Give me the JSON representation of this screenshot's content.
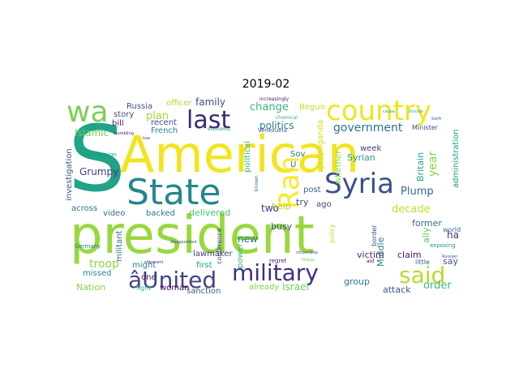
{
  "chart_data": {
    "type": "wordcloud",
    "title": "2019-02",
    "colormap": "viridis",
    "background": "#ffffff",
    "words": [
      {
        "text": "American",
        "color": "#f0e51f"
      },
      {
        "text": "president",
        "color": "#98d83e"
      },
      {
        "text": "S",
        "color": "#20a386"
      },
      {
        "text": "State",
        "color": "#23888e"
      },
      {
        "text": "country",
        "color": "#f1e51d"
      },
      {
        "text": "military",
        "color": "#3e2f82"
      },
      {
        "text": "Syria",
        "color": "#3b518b"
      },
      {
        "text": "Ran",
        "color": "#fde725"
      },
      {
        "text": "wa",
        "color": "#7ad151"
      },
      {
        "text": "said",
        "color": "#b5de2b"
      },
      {
        "text": "last",
        "color": "#3a2a72"
      },
      {
        "text": "âUnited",
        "color": "#414487"
      },
      {
        "text": "government",
        "color": "#2c718e"
      },
      {
        "text": "change",
        "color": "#35b779"
      },
      {
        "text": "Islamic",
        "color": "#6ece58"
      },
      {
        "text": "troop",
        "color": "#8ed645"
      },
      {
        "text": "decade",
        "color": "#bddf26"
      },
      {
        "text": "Plump",
        "color": "#31688e"
      },
      {
        "text": "politics",
        "color": "#2a7b8e"
      },
      {
        "text": "plan",
        "color": "#a2da37"
      },
      {
        "text": "family",
        "color": "#3d4e8a"
      },
      {
        "text": "Grumpy",
        "color": "#453882"
      },
      {
        "text": "new",
        "color": "#2c728e"
      },
      {
        "text": "two",
        "color": "#46337f"
      },
      {
        "text": "year",
        "color": "#86d549"
      },
      {
        "text": "Nation",
        "color": "#86d549"
      },
      {
        "text": "sanction",
        "color": "#32658e"
      },
      {
        "text": "Israel",
        "color": "#6ece58"
      },
      {
        "text": "order",
        "color": "#3fbc73"
      },
      {
        "text": "attack",
        "color": "#38598c"
      },
      {
        "text": "group",
        "color": "#2a788e"
      },
      {
        "text": "claim",
        "color": "#48186a"
      },
      {
        "text": "ally",
        "color": "#5cc863"
      },
      {
        "text": "say",
        "color": "#3a548c"
      },
      {
        "text": "ha",
        "color": "#472d7b"
      },
      {
        "text": "former",
        "color": "#2f6c8e"
      },
      {
        "text": "Middle",
        "color": "#277f8e"
      },
      {
        "text": "Britain",
        "color": "#20a486"
      },
      {
        "text": "victim",
        "color": "#482878"
      },
      {
        "text": "video",
        "color": "#2d708e"
      },
      {
        "text": "backed",
        "color": "#2b758e"
      },
      {
        "text": "delivered",
        "color": "#4ac16d"
      },
      {
        "text": "busy",
        "color": "#3b528b"
      },
      {
        "text": "help",
        "color": "#b0dd2f"
      },
      {
        "text": "try",
        "color": "#3e4989"
      },
      {
        "text": "post",
        "color": "#355f8d"
      },
      {
        "text": "ago",
        "color": "#404688"
      },
      {
        "text": "U",
        "color": "#2e6f8e"
      },
      {
        "text": "Sov",
        "color": "#2a788e"
      },
      {
        "text": "Syrian",
        "color": "#1f9e89"
      },
      {
        "text": "week",
        "color": "#443a83"
      },
      {
        "text": "Begun",
        "color": "#c2df23"
      },
      {
        "text": "recent",
        "color": "#3c4f8a"
      },
      {
        "text": "French",
        "color": "#26828e"
      },
      {
        "text": "story",
        "color": "#3b528b"
      },
      {
        "text": "bill",
        "color": "#482475"
      },
      {
        "text": "Russia",
        "color": "#39568c"
      },
      {
        "text": "officer",
        "color": "#a8db34"
      },
      {
        "text": "first",
        "color": "#22a884"
      },
      {
        "text": "already",
        "color": "#7fd34e"
      },
      {
        "text": "power",
        "color": "#35b779"
      },
      {
        "text": "lawmaker",
        "color": "#414487"
      },
      {
        "text": "woman",
        "color": "#440154"
      },
      {
        "text": "one",
        "color": "#481a6c"
      },
      {
        "text": "might",
        "color": "#277f8e"
      },
      {
        "text": "missed",
        "color": "#25848e"
      },
      {
        "text": "militant",
        "color": "#2c728e"
      },
      {
        "text": "across",
        "color": "#2d708e"
      },
      {
        "text": "investigation",
        "color": "#3b528b"
      },
      {
        "text": "political",
        "color": "#35b779"
      },
      {
        "text": "propaganda",
        "color": "#d8e219"
      },
      {
        "text": "whether",
        "color": "#8bd646"
      },
      {
        "text": "administration",
        "color": "#1f9f88"
      },
      {
        "text": "conference",
        "color": "#404688"
      },
      {
        "text": "little",
        "color": "#31688e"
      },
      {
        "text": "world",
        "color": "#2c728e"
      },
      {
        "text": "border",
        "color": "#3f4788"
      },
      {
        "text": "policy",
        "color": "#b5de2b"
      },
      {
        "text": "exposing",
        "color": "#20928c"
      },
      {
        "text": "Minister",
        "color": "#3e4a89"
      },
      {
        "text": "Venezuela",
        "color": "#39568c"
      },
      {
        "text": "economic",
        "color": "#238a8d"
      },
      {
        "text": "Foreign",
        "color": "#1f988b"
      },
      {
        "text": "Germany",
        "color": "#2a778e"
      },
      {
        "text": "fight",
        "color": "#32b67a"
      },
      {
        "text": "regret",
        "color": "#471063"
      },
      {
        "text": "known",
        "color": "#2f6c8e"
      },
      {
        "text": "increasingly",
        "color": "#482071"
      },
      {
        "text": "chemical",
        "color": "#35b779"
      },
      {
        "text": "tow",
        "color": "#414487"
      },
      {
        "text": "Swift",
        "color": "#2c728e"
      },
      {
        "text": "Russian",
        "color": "#3b528b"
      },
      {
        "text": "disappointed",
        "color": "#3e4989"
      },
      {
        "text": "shipment",
        "color": "#46337f"
      },
      {
        "text": "lineup",
        "color": "#6ece58"
      },
      {
        "text": "aid",
        "color": "#440154"
      },
      {
        "text": "stumbling",
        "color": "#482475"
      },
      {
        "text": "cause",
        "color": "#1f988b"
      },
      {
        "text": "blocker",
        "color": "#29af7f"
      },
      {
        "text": "citizenship",
        "color": "#3b528b"
      }
    ]
  }
}
